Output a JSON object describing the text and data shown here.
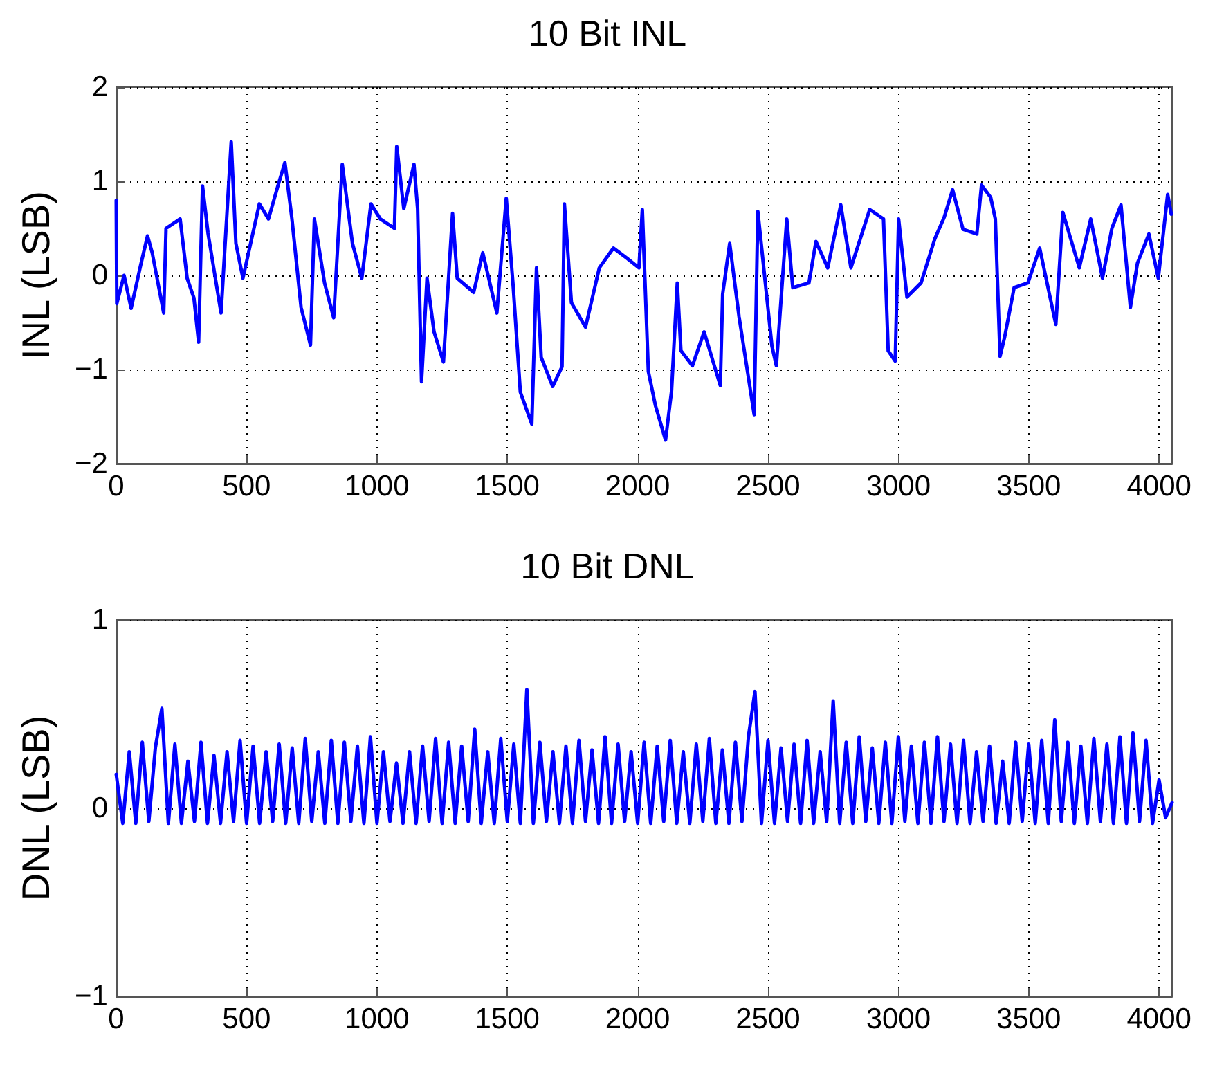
{
  "chart_data": [
    {
      "type": "line",
      "title": "10 Bit INL",
      "ylabel": "INL (LSB)",
      "xlim": [
        0,
        4050
      ],
      "xticks": [
        0,
        500,
        1000,
        1500,
        2000,
        2500,
        3000,
        3500,
        4000
      ],
      "ylim": [
        -2,
        2
      ],
      "yticks": [
        -2,
        -1,
        0,
        1,
        2
      ],
      "grid": true,
      "marker": "none",
      "line_style": "solid",
      "series": [
        {
          "color": "#0000ff",
          "x": [
            0,
            2,
            30,
            57,
            93,
            120,
            138,
            182,
            191,
            245,
            272,
            298,
            316,
            331,
            352,
            402,
            441,
            459,
            486,
            549,
            584,
            620,
            647,
            674,
            709,
            745,
            760,
            799,
            834,
            867,
            906,
            942,
            977,
            1013,
            1067,
            1076,
            1103,
            1142,
            1156,
            1171,
            1192,
            1219,
            1255,
            1290,
            1308,
            1371,
            1406,
            1460,
            1496,
            1523,
            1550,
            1594,
            1612,
            1630,
            1674,
            1710,
            1719,
            1746,
            1800,
            1853,
            1907,
            1960,
            2005,
            2018,
            2041,
            2068,
            2107,
            2130,
            2152,
            2166,
            2210,
            2255,
            2317,
            2326,
            2353,
            2389,
            2447,
            2461,
            2515,
            2532,
            2572,
            2595,
            2657,
            2684,
            2729,
            2756,
            2779,
            2818,
            2890,
            2943,
            2961,
            2988,
            3001,
            3033,
            3087,
            3140,
            3176,
            3208,
            3248,
            3301,
            3319,
            3354,
            3372,
            3390,
            3408,
            3444,
            3497,
            3542,
            3604,
            3631,
            3694,
            3738,
            3783,
            3819,
            3854,
            3890,
            3917,
            3961,
            3997,
            4033,
            4047
          ],
          "values": [
            0.8,
            -0.3,
            0.0,
            -0.35,
            0.1,
            0.42,
            0.24,
            -0.4,
            0.5,
            0.6,
            -0.03,
            -0.24,
            -0.71,
            0.95,
            0.45,
            -0.4,
            1.42,
            0.34,
            -0.03,
            0.76,
            0.6,
            0.95,
            1.2,
            0.6,
            -0.34,
            -0.74,
            0.6,
            -0.08,
            -0.45,
            1.18,
            0.34,
            -0.03,
            0.76,
            0.6,
            0.5,
            1.37,
            0.71,
            1.18,
            0.71,
            -1.13,
            -0.03,
            -0.6,
            -0.92,
            0.66,
            -0.03,
            -0.18,
            0.24,
            -0.4,
            0.82,
            -0.13,
            -1.24,
            -1.58,
            0.08,
            -0.87,
            -1.18,
            -0.97,
            0.76,
            -0.29,
            -0.55,
            0.08,
            0.29,
            0.18,
            0.08,
            0.7,
            -1.02,
            -1.38,
            -1.75,
            -1.23,
            -0.08,
            -0.8,
            -0.96,
            -0.6,
            -1.17,
            -0.2,
            0.34,
            -0.44,
            -1.48,
            0.68,
            -0.75,
            -0.96,
            0.6,
            -0.13,
            -0.08,
            0.36,
            0.08,
            0.44,
            0.75,
            0.08,
            0.7,
            0.6,
            -0.8,
            -0.91,
            0.6,
            -0.23,
            -0.08,
            0.39,
            0.62,
            0.91,
            0.49,
            0.44,
            0.96,
            0.83,
            0.6,
            -0.86,
            -0.65,
            -0.13,
            -0.08,
            0.29,
            -0.52,
            0.67,
            0.08,
            0.6,
            -0.03,
            0.5,
            0.75,
            -0.34,
            0.13,
            0.44,
            -0.03,
            0.86,
            0.65
          ]
        }
      ]
    },
    {
      "type": "line",
      "title": "10 Bit DNL",
      "ylabel": "DNL (LSB)",
      "xlim": [
        0,
        4050
      ],
      "xticks": [
        0,
        500,
        1000,
        1500,
        2000,
        2500,
        3000,
        3500,
        4000
      ],
      "ylim": [
        -1,
        1
      ],
      "yticks": [
        -1,
        0,
        1
      ],
      "grid": true,
      "marker": "none",
      "line_style": "solid",
      "series": [
        {
          "color": "#0000ff",
          "x": [
            0,
            25,
            50,
            75,
            100,
            125,
            150,
            175,
            200,
            225,
            250,
            275,
            300,
            325,
            350,
            375,
            400,
            425,
            450,
            475,
            500,
            525,
            550,
            575,
            600,
            625,
            650,
            675,
            700,
            725,
            750,
            775,
            800,
            825,
            850,
            875,
            900,
            925,
            950,
            975,
            1000,
            1025,
            1050,
            1075,
            1100,
            1125,
            1150,
            1175,
            1200,
            1225,
            1250,
            1275,
            1300,
            1325,
            1350,
            1375,
            1400,
            1425,
            1450,
            1475,
            1500,
            1525,
            1550,
            1575,
            1600,
            1625,
            1650,
            1675,
            1700,
            1725,
            1750,
            1775,
            1800,
            1825,
            1850,
            1875,
            1900,
            1925,
            1950,
            1975,
            2000,
            2025,
            2050,
            2075,
            2100,
            2125,
            2150,
            2175,
            2200,
            2225,
            2250,
            2275,
            2300,
            2325,
            2350,
            2375,
            2400,
            2425,
            2450,
            2475,
            2500,
            2525,
            2550,
            2575,
            2600,
            2625,
            2650,
            2675,
            2700,
            2725,
            2750,
            2775,
            2800,
            2825,
            2850,
            2875,
            2900,
            2925,
            2950,
            2975,
            3000,
            3025,
            3050,
            3075,
            3100,
            3125,
            3150,
            3175,
            3200,
            3225,
            3250,
            3275,
            3300,
            3325,
            3350,
            3375,
            3400,
            3425,
            3450,
            3475,
            3500,
            3525,
            3550,
            3575,
            3600,
            3625,
            3650,
            3675,
            3700,
            3725,
            3750,
            3775,
            3800,
            3825,
            3850,
            3875,
            3900,
            3925,
            3950,
            3975,
            4000,
            4025,
            4050
          ],
          "values": [
            0.18,
            -0.08,
            0.3,
            -0.08,
            0.35,
            -0.07,
            0.32,
            0.53,
            -0.08,
            0.34,
            -0.08,
            0.25,
            -0.07,
            0.35,
            -0.08,
            0.28,
            -0.08,
            0.3,
            -0.07,
            0.36,
            -0.08,
            0.33,
            -0.08,
            0.3,
            -0.07,
            0.34,
            -0.08,
            0.32,
            -0.08,
            0.37,
            -0.07,
            0.3,
            -0.08,
            0.36,
            -0.08,
            0.35,
            -0.07,
            0.33,
            -0.08,
            0.38,
            -0.08,
            0.3,
            -0.07,
            0.24,
            -0.08,
            0.3,
            -0.08,
            0.33,
            -0.07,
            0.37,
            -0.08,
            0.35,
            -0.08,
            0.33,
            -0.07,
            0.42,
            -0.08,
            0.3,
            -0.08,
            0.37,
            -0.07,
            0.34,
            -0.08,
            0.63,
            -0.08,
            0.35,
            -0.07,
            0.3,
            -0.08,
            0.33,
            -0.08,
            0.36,
            -0.07,
            0.31,
            -0.08,
            0.38,
            -0.08,
            0.34,
            -0.07,
            0.3,
            -0.08,
            0.35,
            -0.08,
            0.33,
            -0.07,
            0.36,
            -0.08,
            0.3,
            -0.08,
            0.34,
            -0.07,
            0.37,
            -0.08,
            0.31,
            -0.08,
            0.35,
            -0.07,
            0.38,
            0.62,
            -0.08,
            0.36,
            -0.08,
            0.32,
            -0.07,
            0.34,
            -0.08,
            0.36,
            -0.08,
            0.3,
            -0.07,
            0.57,
            -0.08,
            0.35,
            -0.08,
            0.38,
            -0.07,
            0.32,
            -0.08,
            0.35,
            -0.08,
            0.38,
            -0.07,
            0.33,
            -0.08,
            0.35,
            -0.08,
            0.38,
            -0.07,
            0.34,
            -0.08,
            0.36,
            -0.08,
            0.3,
            -0.07,
            0.33,
            -0.08,
            0.25,
            -0.08,
            0.35,
            -0.07,
            0.34,
            -0.08,
            0.36,
            -0.08,
            0.47,
            -0.07,
            0.35,
            -0.08,
            0.33,
            -0.08,
            0.37,
            -0.07,
            0.34,
            -0.08,
            0.38,
            -0.08,
            0.4,
            -0.07,
            0.36,
            -0.08,
            0.15,
            -0.05,
            0.03
          ]
        }
      ]
    }
  ]
}
